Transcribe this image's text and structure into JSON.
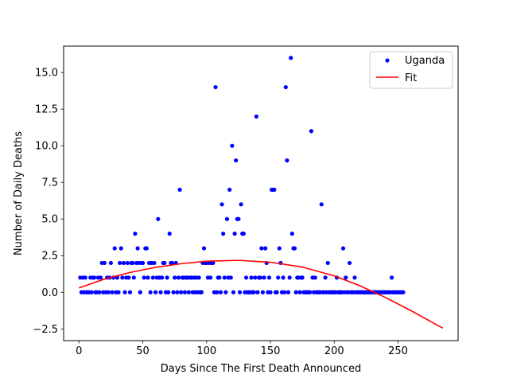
{
  "chart_data": {
    "type": "scatter",
    "title": "",
    "xlabel": "Days Since The First Death Announced",
    "ylabel": "Number of Daily Deaths",
    "xlim": [
      -12,
      297
    ],
    "ylim": [
      -3.3,
      16.8
    ],
    "x_ticks": [
      0,
      50,
      100,
      150,
      200,
      250
    ],
    "x_tick_labels": [
      "0",
      "50",
      "100",
      "150",
      "200",
      "250"
    ],
    "y_ticks": [
      -2.5,
      0.0,
      2.5,
      5.0,
      7.5,
      10.0,
      12.5,
      15.0
    ],
    "y_tick_labels": [
      "−2.5",
      "0.0",
      "2.5",
      "5.0",
      "7.5",
      "10.0",
      "12.5",
      "15.0"
    ],
    "grid": false,
    "legend_position": "top-right",
    "series": [
      {
        "name": "Uganda",
        "kind": "points",
        "color": "#0000ff",
        "points": [
          [
            1,
            1
          ],
          [
            2,
            0
          ],
          [
            3,
            1
          ],
          [
            4,
            0
          ],
          [
            5,
            1
          ],
          [
            6,
            0
          ],
          [
            7,
            0
          ],
          [
            8,
            0
          ],
          [
            9,
            1
          ],
          [
            10,
            0
          ],
          [
            11,
            1
          ],
          [
            12,
            1
          ],
          [
            13,
            0
          ],
          [
            14,
            0
          ],
          [
            15,
            1
          ],
          [
            16,
            0
          ],
          [
            17,
            1
          ],
          [
            18,
            2
          ],
          [
            19,
            0
          ],
          [
            20,
            2
          ],
          [
            21,
            0
          ],
          [
            22,
            1
          ],
          [
            23,
            0
          ],
          [
            24,
            1
          ],
          [
            25,
            2
          ],
          [
            26,
            0
          ],
          [
            27,
            1
          ],
          [
            28,
            3
          ],
          [
            29,
            0
          ],
          [
            30,
            1
          ],
          [
            31,
            0
          ],
          [
            32,
            2
          ],
          [
            33,
            3
          ],
          [
            34,
            1
          ],
          [
            35,
            2
          ],
          [
            36,
            0
          ],
          [
            37,
            1
          ],
          [
            38,
            2
          ],
          [
            39,
            1
          ],
          [
            40,
            0
          ],
          [
            41,
            2
          ],
          [
            42,
            2
          ],
          [
            43,
            1
          ],
          [
            44,
            4
          ],
          [
            45,
            2
          ],
          [
            46,
            3
          ],
          [
            47,
            2
          ],
          [
            48,
            0
          ],
          [
            49,
            2
          ],
          [
            50,
            2
          ],
          [
            51,
            1
          ],
          [
            52,
            3
          ],
          [
            53,
            3
          ],
          [
            54,
            1
          ],
          [
            55,
            2
          ],
          [
            56,
            0
          ],
          [
            57,
            2
          ],
          [
            58,
            1
          ],
          [
            59,
            2
          ],
          [
            60,
            0
          ],
          [
            61,
            1
          ],
          [
            62,
            5
          ],
          [
            63,
            1
          ],
          [
            64,
            0
          ],
          [
            65,
            1
          ],
          [
            66,
            2
          ],
          [
            67,
            2
          ],
          [
            68,
            0
          ],
          [
            69,
            1
          ],
          [
            70,
            0
          ],
          [
            71,
            4
          ],
          [
            72,
            2
          ],
          [
            73,
            2
          ],
          [
            74,
            0
          ],
          [
            75,
            1
          ],
          [
            76,
            2
          ],
          [
            77,
            0
          ],
          [
            78,
            1
          ],
          [
            79,
            7
          ],
          [
            80,
            0
          ],
          [
            81,
            1
          ],
          [
            82,
            1
          ],
          [
            83,
            0
          ],
          [
            84,
            1
          ],
          [
            85,
            1
          ],
          [
            86,
            0
          ],
          [
            87,
            1
          ],
          [
            88,
            1
          ],
          [
            89,
            0
          ],
          [
            90,
            1
          ],
          [
            91,
            0
          ],
          [
            92,
            1
          ],
          [
            93,
            0
          ],
          [
            94,
            1
          ],
          [
            95,
            0
          ],
          [
            96,
            0
          ],
          [
            97,
            2
          ],
          [
            98,
            3
          ],
          [
            99,
            2
          ],
          [
            100,
            2
          ],
          [
            101,
            1
          ],
          [
            102,
            2
          ],
          [
            103,
            1
          ],
          [
            104,
            2
          ],
          [
            105,
            2
          ],
          [
            106,
            0
          ],
          [
            107,
            14
          ],
          [
            108,
            0
          ],
          [
            109,
            1
          ],
          [
            110,
            1
          ],
          [
            111,
            0
          ],
          [
            112,
            6
          ],
          [
            113,
            4
          ],
          [
            114,
            1
          ],
          [
            115,
            0
          ],
          [
            116,
            5
          ],
          [
            117,
            1
          ],
          [
            118,
            7
          ],
          [
            119,
            1
          ],
          [
            120,
            10
          ],
          [
            121,
            0
          ],
          [
            122,
            4
          ],
          [
            123,
            9
          ],
          [
            124,
            5
          ],
          [
            125,
            5
          ],
          [
            126,
            0
          ],
          [
            127,
            6
          ],
          [
            128,
            4
          ],
          [
            129,
            4
          ],
          [
            130,
            0
          ],
          [
            131,
            1
          ],
          [
            132,
            0
          ],
          [
            133,
            0
          ],
          [
            134,
            0
          ],
          [
            135,
            1
          ],
          [
            136,
            0
          ],
          [
            137,
            0
          ],
          [
            138,
            1
          ],
          [
            139,
            12
          ],
          [
            140,
            0
          ],
          [
            141,
            1
          ],
          [
            142,
            1
          ],
          [
            143,
            3
          ],
          [
            144,
            0
          ],
          [
            145,
            1
          ],
          [
            146,
            3
          ],
          [
            147,
            2
          ],
          [
            148,
            0
          ],
          [
            149,
            1
          ],
          [
            150,
            0
          ],
          [
            151,
            7
          ],
          [
            152,
            7
          ],
          [
            153,
            7
          ],
          [
            154,
            0
          ],
          [
            155,
            0
          ],
          [
            156,
            1
          ],
          [
            157,
            3
          ],
          [
            158,
            2
          ],
          [
            159,
            0
          ],
          [
            160,
            1
          ],
          [
            161,
            0
          ],
          [
            162,
            14
          ],
          [
            163,
            9
          ],
          [
            164,
            0
          ],
          [
            165,
            1
          ],
          [
            166,
            16
          ],
          [
            167,
            4
          ],
          [
            168,
            3
          ],
          [
            169,
            3
          ],
          [
            170,
            0
          ],
          [
            171,
            1
          ],
          [
            172,
            1
          ],
          [
            173,
            0
          ],
          [
            174,
            1
          ],
          [
            175,
            1
          ],
          [
            176,
            0
          ],
          [
            177,
            0
          ],
          [
            178,
            0
          ],
          [
            179,
            0
          ],
          [
            180,
            0
          ],
          [
            181,
            0
          ],
          [
            182,
            11
          ],
          [
            183,
            1
          ],
          [
            184,
            0
          ],
          [
            185,
            1
          ],
          [
            186,
            0
          ],
          [
            187,
            0
          ],
          [
            188,
            0
          ],
          [
            189,
            0
          ],
          [
            190,
            6
          ],
          [
            191,
            0
          ],
          [
            192,
            0
          ],
          [
            193,
            1
          ],
          [
            194,
            0
          ],
          [
            195,
            2
          ],
          [
            196,
            0
          ],
          [
            197,
            0
          ],
          [
            198,
            0
          ],
          [
            199,
            0
          ],
          [
            200,
            0
          ],
          [
            201,
            0
          ],
          [
            202,
            1
          ],
          [
            203,
            0
          ],
          [
            204,
            0
          ],
          [
            205,
            0
          ],
          [
            206,
            0
          ],
          [
            207,
            3
          ],
          [
            208,
            0
          ],
          [
            209,
            1
          ],
          [
            210,
            0
          ],
          [
            211,
            0
          ],
          [
            212,
            2
          ],
          [
            213,
            0
          ],
          [
            214,
            0
          ],
          [
            215,
            0
          ],
          [
            216,
            1
          ],
          [
            217,
            0
          ],
          [
            218,
            0
          ],
          [
            219,
            0
          ],
          [
            220,
            0
          ],
          [
            221,
            0
          ],
          [
            222,
            0
          ],
          [
            223,
            0
          ],
          [
            224,
            0
          ],
          [
            225,
            0
          ],
          [
            226,
            0
          ],
          [
            227,
            0
          ],
          [
            228,
            0
          ],
          [
            229,
            0
          ],
          [
            230,
            0
          ],
          [
            231,
            0
          ],
          [
            232,
            0
          ],
          [
            233,
            0
          ],
          [
            234,
            0
          ],
          [
            235,
            0
          ],
          [
            236,
            0
          ],
          [
            237,
            0
          ],
          [
            238,
            0
          ],
          [
            239,
            0
          ],
          [
            240,
            0
          ],
          [
            241,
            0
          ],
          [
            242,
            0
          ],
          [
            243,
            0
          ],
          [
            244,
            0
          ],
          [
            245,
            1
          ],
          [
            246,
            0
          ],
          [
            247,
            0
          ],
          [
            248,
            0
          ],
          [
            249,
            0
          ],
          [
            250,
            0
          ],
          [
            251,
            0
          ],
          [
            252,
            0
          ],
          [
            253,
            0
          ],
          [
            254,
            0
          ]
        ]
      },
      {
        "name": "Fit",
        "kind": "line",
        "color": "#ff0000",
        "x": [
          0,
          20,
          40,
          60,
          80,
          100,
          125,
          150,
          175,
          200,
          220,
          240,
          260,
          285
        ],
        "y": [
          0.3,
          0.9,
          1.35,
          1.7,
          1.95,
          2.12,
          2.18,
          2.05,
          1.72,
          1.12,
          0.45,
          -0.35,
          -1.25,
          -2.45
        ]
      }
    ]
  }
}
